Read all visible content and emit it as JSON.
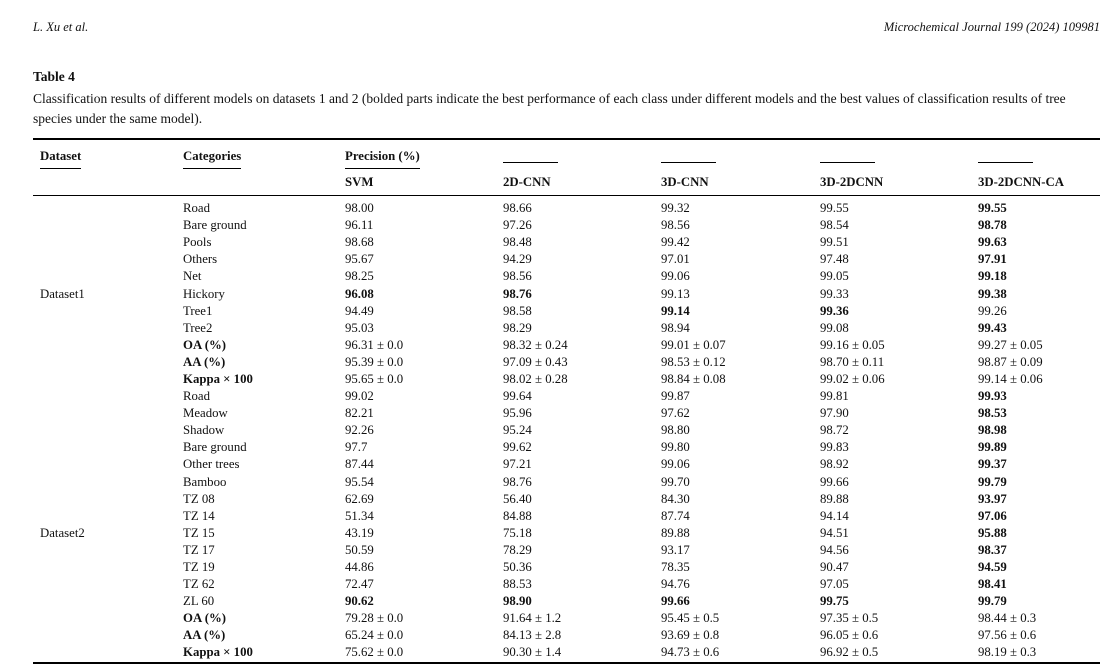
{
  "page_header": {
    "author": "L. Xu et al.",
    "journal": "Microchemical Journal 199 (2024) 109981"
  },
  "table": {
    "label": "Table 4",
    "caption": "Classification results of different models on datasets 1 and 2 (bolded parts indicate the best performance of each class under different models and the best values of classification results of tree species under the same model).",
    "columns": {
      "dataset": "Dataset",
      "categories": "Categories",
      "precision_group": "Precision (%)",
      "models": [
        "SVM",
        "2D-CNN",
        "3D-CNN",
        "3D-2DCNN",
        "3D-2DCNN-CA"
      ]
    },
    "groups": [
      {
        "dataset": "Dataset1",
        "label_row": 5,
        "rows": [
          {
            "category": "Road",
            "category_bold": 0,
            "values": [
              "98.00",
              "98.66",
              "99.32",
              "99.55",
              "99.55"
            ],
            "bold": [
              0,
              0,
              0,
              0,
              1
            ]
          },
          {
            "category": "Bare ground",
            "category_bold": 0,
            "values": [
              "96.11",
              "97.26",
              "98.56",
              "98.54",
              "98.78"
            ],
            "bold": [
              0,
              0,
              0,
              0,
              1
            ]
          },
          {
            "category": "Pools",
            "category_bold": 0,
            "values": [
              "98.68",
              "98.48",
              "99.42",
              "99.51",
              "99.63"
            ],
            "bold": [
              0,
              0,
              0,
              0,
              1
            ]
          },
          {
            "category": "Others",
            "category_bold": 0,
            "values": [
              "95.67",
              "94.29",
              "97.01",
              "97.48",
              "97.91"
            ],
            "bold": [
              0,
              0,
              0,
              0,
              1
            ]
          },
          {
            "category": "Net",
            "category_bold": 0,
            "values": [
              "98.25",
              "98.56",
              "99.06",
              "99.05",
              "99.18"
            ],
            "bold": [
              0,
              0,
              0,
              0,
              1
            ]
          },
          {
            "category": "Hickory",
            "category_bold": 0,
            "values": [
              "96.08",
              "98.76",
              "99.13",
              "99.33",
              "99.38"
            ],
            "bold": [
              1,
              1,
              0,
              0,
              1
            ]
          },
          {
            "category": "Tree1",
            "category_bold": 0,
            "values": [
              "94.49",
              "98.58",
              "99.14",
              "99.36",
              "99.26"
            ],
            "bold": [
              0,
              0,
              1,
              1,
              0
            ]
          },
          {
            "category": "Tree2",
            "category_bold": 0,
            "values": [
              "95.03",
              "98.29",
              "98.94",
              "99.08",
              "99.43"
            ],
            "bold": [
              0,
              0,
              0,
              0,
              1
            ]
          },
          {
            "category": "OA (%)",
            "category_bold": 1,
            "values": [
              "96.31 ± 0.0",
              "98.32 ± 0.24",
              "99.01 ± 0.07",
              "99.16 ± 0.05",
              "99.27 ± 0.05"
            ],
            "bold": [
              0,
              0,
              0,
              0,
              0
            ]
          },
          {
            "category": "AA (%)",
            "category_bold": 1,
            "values": [
              "95.39 ± 0.0",
              "97.09 ± 0.43",
              "98.53 ± 0.12",
              "98.70 ± 0.11",
              "98.87 ± 0.09"
            ],
            "bold": [
              0,
              0,
              0,
              0,
              0
            ]
          },
          {
            "category": "Kappa × 100",
            "category_bold": 1,
            "values": [
              "95.65 ± 0.0",
              "98.02 ± 0.28",
              "98.84 ± 0.08",
              "99.02 ± 0.06",
              "99.14 ± 0.06"
            ],
            "bold": [
              0,
              0,
              0,
              0,
              0
            ]
          }
        ]
      },
      {
        "dataset": "Dataset2",
        "label_row": 8,
        "rows": [
          {
            "category": "Road",
            "category_bold": 0,
            "values": [
              "99.02",
              "99.64",
              "99.87",
              "99.81",
              "99.93"
            ],
            "bold": [
              0,
              0,
              0,
              0,
              1
            ]
          },
          {
            "category": "Meadow",
            "category_bold": 0,
            "values": [
              "82.21",
              "95.96",
              "97.62",
              "97.90",
              "98.53"
            ],
            "bold": [
              0,
              0,
              0,
              0,
              1
            ]
          },
          {
            "category": "Shadow",
            "category_bold": 0,
            "values": [
              "92.26",
              "95.24",
              "98.80",
              "98.72",
              "98.98"
            ],
            "bold": [
              0,
              0,
              0,
              0,
              1
            ]
          },
          {
            "category": "Bare ground",
            "category_bold": 0,
            "values": [
              "97.7",
              "99.62",
              "99.80",
              "99.83",
              "99.89"
            ],
            "bold": [
              0,
              0,
              0,
              0,
              1
            ]
          },
          {
            "category": "Other trees",
            "category_bold": 0,
            "values": [
              "87.44",
              "97.21",
              "99.06",
              "98.92",
              "99.37"
            ],
            "bold": [
              0,
              0,
              0,
              0,
              1
            ]
          },
          {
            "category": "Bamboo",
            "category_bold": 0,
            "values": [
              "95.54",
              "98.76",
              "99.70",
              "99.66",
              "99.79"
            ],
            "bold": [
              0,
              0,
              0,
              0,
              1
            ]
          },
          {
            "category": "TZ 08",
            "category_bold": 0,
            "values": [
              "62.69",
              "56.40",
              "84.30",
              "89.88",
              "93.97"
            ],
            "bold": [
              0,
              0,
              0,
              0,
              1
            ]
          },
          {
            "category": "TZ 14",
            "category_bold": 0,
            "values": [
              "51.34",
              "84.88",
              "87.74",
              "94.14",
              "97.06"
            ],
            "bold": [
              0,
              0,
              0,
              0,
              1
            ]
          },
          {
            "category": "TZ 15",
            "category_bold": 0,
            "values": [
              "43.19",
              "75.18",
              "89.88",
              "94.51",
              "95.88"
            ],
            "bold": [
              0,
              0,
              0,
              0,
              1
            ]
          },
          {
            "category": "TZ 17",
            "category_bold": 0,
            "values": [
              "50.59",
              "78.29",
              "93.17",
              "94.56",
              "98.37"
            ],
            "bold": [
              0,
              0,
              0,
              0,
              1
            ]
          },
          {
            "category": "TZ 19",
            "category_bold": 0,
            "values": [
              "44.86",
              "50.36",
              "78.35",
              "90.47",
              "94.59"
            ],
            "bold": [
              0,
              0,
              0,
              0,
              1
            ]
          },
          {
            "category": "TZ 62",
            "category_bold": 0,
            "values": [
              "72.47",
              "88.53",
              "94.76",
              "97.05",
              "98.41"
            ],
            "bold": [
              0,
              0,
              0,
              0,
              1
            ]
          },
          {
            "category": "ZL 60",
            "category_bold": 0,
            "values": [
              "90.62",
              "98.90",
              "99.66",
              "99.75",
              "99.79"
            ],
            "bold": [
              1,
              1,
              1,
              1,
              1
            ]
          },
          {
            "category": "OA (%)",
            "category_bold": 1,
            "values": [
              "79.28 ± 0.0",
              "91.64 ± 1.2",
              "95.45 ± 0.5",
              "97.35 ± 0.5",
              "98.44 ± 0.3"
            ],
            "bold": [
              0,
              0,
              0,
              0,
              0
            ]
          },
          {
            "category": "AA (%)",
            "category_bold": 1,
            "values": [
              "65.24 ± 0.0",
              "84.13 ± 2.8",
              "93.69 ± 0.8",
              "96.05 ± 0.6",
              "97.56 ± 0.6"
            ],
            "bold": [
              0,
              0,
              0,
              0,
              0
            ]
          },
          {
            "category": "Kappa × 100",
            "category_bold": 1,
            "values": [
              "75.62 ± 0.0",
              "90.30 ± 1.4",
              "94.73 ± 0.6",
              "96.92 ± 0.5",
              "98.19 ± 0.3"
            ],
            "bold": [
              0,
              0,
              0,
              0,
              0
            ]
          }
        ]
      }
    ]
  }
}
